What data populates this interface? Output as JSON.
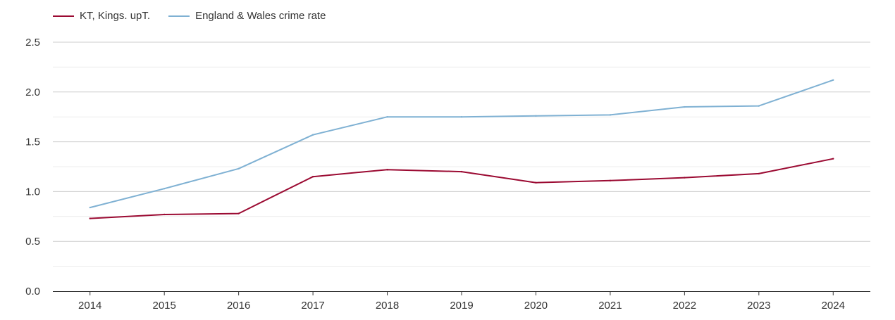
{
  "chart_data": {
    "type": "line",
    "title": "",
    "xlabel": "",
    "ylabel": "",
    "x": [
      "2014",
      "2015",
      "2016",
      "2017",
      "2018",
      "2019",
      "2020",
      "2021",
      "2022",
      "2023",
      "2024"
    ],
    "ylim": [
      0,
      2.5
    ],
    "yticks": [
      "0.0",
      "0.5",
      "1.0",
      "1.5",
      "2.0",
      "2.5"
    ],
    "grid": true,
    "legend_position": "top-left",
    "series": [
      {
        "name": "KT, Kings. upT.",
        "color": "#9b0a32",
        "values": [
          0.73,
          0.77,
          0.78,
          1.15,
          1.22,
          1.2,
          1.09,
          1.11,
          1.14,
          1.18,
          1.33
        ]
      },
      {
        "name": "England & Wales crime rate",
        "color": "#7fb1d3",
        "values": [
          0.84,
          1.03,
          1.23,
          1.57,
          1.75,
          1.75,
          1.76,
          1.77,
          1.85,
          1.86,
          2.12
        ]
      }
    ]
  }
}
